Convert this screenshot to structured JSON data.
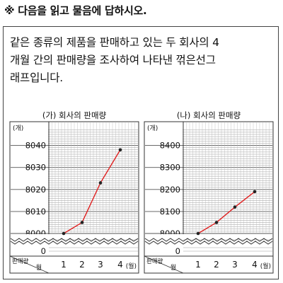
{
  "instruction": "※ 다음을 읽고 물음에 답하시오.",
  "question": {
    "line1": "같은 종류의 제품을 판매하고 있는 두 회사의 4",
    "line2": "개월 간의 판매량을 조사하여 나타낸 꺾은선그",
    "line3": "래프입니다."
  },
  "colors": {
    "line": "#e02020",
    "point": "#222222",
    "grid": "#888888",
    "axis": "#333333"
  },
  "chart_data": [
    {
      "type": "line",
      "title": "(가) 회사의 판매량",
      "y_unit": "(개)",
      "x_unit": "(월)",
      "corner_label_top": "판매량",
      "corner_label_bottom": "월",
      "categories": [
        "1",
        "2",
        "3",
        "4"
      ],
      "values": [
        8000,
        8005,
        8023,
        8038
      ],
      "yticks": [
        "8040",
        "8030",
        "8020",
        "8010",
        "8000"
      ],
      "ybreak_label": "0",
      "ylim": [
        8000,
        8045
      ],
      "grid": true,
      "y_break": true
    },
    {
      "type": "line",
      "title": "(나) 회사의 판매량",
      "y_unit": "(개)",
      "x_unit": "(월)",
      "corner_label_top": "판매량",
      "corner_label_bottom": "월",
      "categories": [
        "1",
        "2",
        "3",
        "4"
      ],
      "values": [
        8000,
        8050,
        8120,
        8190
      ],
      "yticks": [
        "8400",
        "8300",
        "8200",
        "8100",
        "8000"
      ],
      "ybreak_label": "0",
      "ylim": [
        8000,
        8450
      ],
      "grid": true,
      "y_break": true
    }
  ]
}
